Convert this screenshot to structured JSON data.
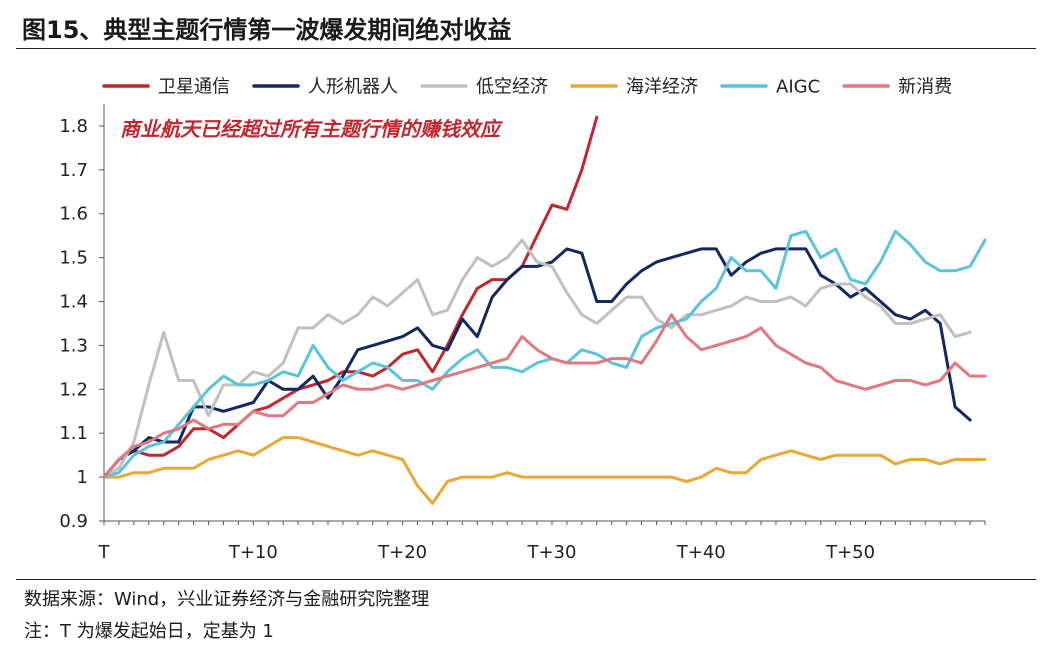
{
  "figure": {
    "title": "图15、典型主题行情第一波爆发期间绝对收益",
    "source": "数据来源：Wind，兴业证券经济与金融研究院整理",
    "footnote": "注：T 为爆发起始日，定基为 1"
  },
  "chart_data": {
    "type": "line",
    "title": "图15、典型主题行情第一波爆发期间绝对收益",
    "xlabel": "",
    "ylabel": "",
    "x": [
      0,
      1,
      2,
      3,
      4,
      5,
      6,
      7,
      8,
      9,
      10,
      11,
      12,
      13,
      14,
      15,
      16,
      17,
      18,
      19,
      20,
      21,
      22,
      23,
      24,
      25,
      26,
      27,
      28,
      29,
      30,
      31,
      32,
      33,
      34,
      35,
      36,
      37,
      38,
      39,
      40,
      41,
      42,
      43,
      44,
      45,
      46,
      47,
      48,
      49,
      50,
      51,
      52,
      53,
      54,
      55,
      56,
      57,
      58,
      59
    ],
    "xticks": [
      0,
      10,
      20,
      30,
      40,
      50
    ],
    "xtick_labels": [
      "T",
      "T+10",
      "T+20",
      "T+30",
      "T+40",
      "T+50"
    ],
    "xlim": [
      0,
      59
    ],
    "ylim": [
      0.9,
      1.85
    ],
    "yticks": [
      0.9,
      1.0,
      1.1,
      1.2,
      1.3,
      1.4,
      1.5,
      1.6,
      1.7,
      1.8
    ],
    "ytick_labels": [
      "0.9",
      "1",
      "1.1",
      "1.2",
      "1.3",
      "1.4",
      "1.5",
      "1.6",
      "1.7",
      "1.8"
    ],
    "grid": false,
    "legend_position": "top",
    "annotations": [
      {
        "text": "商业航天已经超过所有主题行情的赚钱效应",
        "color": "#c0282f"
      }
    ],
    "series": [
      {
        "name": "卫星通信",
        "color": "#c0282f",
        "values": [
          1.0,
          1.04,
          1.06,
          1.05,
          1.05,
          1.07,
          1.11,
          1.11,
          1.09,
          1.12,
          1.15,
          1.16,
          1.18,
          1.2,
          1.21,
          1.22,
          1.24,
          1.24,
          1.23,
          1.25,
          1.28,
          1.29,
          1.24,
          1.3,
          1.37,
          1.43,
          1.45,
          1.45,
          1.48,
          1.55,
          1.62,
          1.61,
          1.7,
          1.82,
          null,
          null,
          null,
          null,
          null,
          null,
          null,
          null,
          null,
          null,
          null,
          null,
          null,
          null,
          null,
          null,
          null,
          null,
          null,
          null,
          null,
          null,
          null,
          null,
          null,
          null
        ]
      },
      {
        "name": "人形机器人",
        "color": "#14285f",
        "values": [
          1.0,
          1.04,
          1.06,
          1.09,
          1.08,
          1.08,
          1.16,
          1.16,
          1.15,
          1.16,
          1.17,
          1.22,
          1.2,
          1.2,
          1.23,
          1.18,
          1.23,
          1.29,
          1.3,
          1.31,
          1.32,
          1.34,
          1.3,
          1.29,
          1.36,
          1.32,
          1.41,
          1.45,
          1.48,
          1.48,
          1.49,
          1.52,
          1.51,
          1.4,
          1.4,
          1.44,
          1.47,
          1.49,
          1.5,
          1.51,
          1.52,
          1.52,
          1.46,
          1.49,
          1.51,
          1.52,
          1.52,
          1.52,
          1.46,
          1.44,
          1.41,
          1.43,
          1.4,
          1.37,
          1.36,
          1.38,
          1.35,
          1.16,
          1.13,
          null
        ]
      },
      {
        "name": "低空经济",
        "color": "#c0c0c0",
        "values": [
          1.0,
          1.02,
          1.08,
          1.21,
          1.33,
          1.22,
          1.22,
          1.14,
          1.21,
          1.21,
          1.24,
          1.23,
          1.26,
          1.34,
          1.34,
          1.37,
          1.35,
          1.37,
          1.41,
          1.39,
          1.42,
          1.45,
          1.37,
          1.38,
          1.45,
          1.5,
          1.48,
          1.5,
          1.54,
          1.49,
          1.48,
          1.42,
          1.37,
          1.35,
          1.38,
          1.41,
          1.41,
          1.36,
          1.34,
          1.37,
          1.37,
          1.38,
          1.39,
          1.41,
          1.4,
          1.4,
          1.41,
          1.39,
          1.43,
          1.44,
          1.44,
          1.41,
          1.39,
          1.35,
          1.35,
          1.36,
          1.37,
          1.32,
          1.33,
          null
        ]
      },
      {
        "name": "海洋经济",
        "color": "#e8a838",
        "values": [
          1.0,
          1.0,
          1.01,
          1.01,
          1.02,
          1.02,
          1.02,
          1.04,
          1.05,
          1.06,
          1.05,
          1.07,
          1.09,
          1.09,
          1.08,
          1.07,
          1.06,
          1.05,
          1.06,
          1.05,
          1.04,
          0.98,
          0.94,
          0.99,
          1.0,
          1.0,
          1.0,
          1.01,
          1.0,
          1.0,
          1.0,
          1.0,
          1.0,
          1.0,
          1.0,
          1.0,
          1.0,
          1.0,
          1.0,
          0.99,
          1.0,
          1.02,
          1.01,
          1.01,
          1.04,
          1.05,
          1.06,
          1.05,
          1.04,
          1.05,
          1.05,
          1.05,
          1.05,
          1.03,
          1.04,
          1.04,
          1.03,
          1.04,
          1.04,
          1.04
        ]
      },
      {
        "name": "AIGC",
        "color": "#5bc4d8",
        "values": [
          1.0,
          1.01,
          1.05,
          1.07,
          1.08,
          1.12,
          1.16,
          1.2,
          1.23,
          1.21,
          1.21,
          1.22,
          1.24,
          1.23,
          1.3,
          1.25,
          1.22,
          1.24,
          1.26,
          1.25,
          1.22,
          1.22,
          1.2,
          1.24,
          1.27,
          1.29,
          1.25,
          1.25,
          1.24,
          1.26,
          1.27,
          1.26,
          1.29,
          1.28,
          1.26,
          1.25,
          1.32,
          1.34,
          1.35,
          1.36,
          1.4,
          1.43,
          1.5,
          1.47,
          1.47,
          1.43,
          1.55,
          1.56,
          1.5,
          1.52,
          1.45,
          1.44,
          1.49,
          1.56,
          1.53,
          1.49,
          1.47,
          1.47,
          1.48,
          1.54
        ]
      },
      {
        "name": "新消费",
        "color": "#e07880",
        "values": [
          1.0,
          1.04,
          1.07,
          1.08,
          1.1,
          1.11,
          1.13,
          1.11,
          1.12,
          1.12,
          1.15,
          1.14,
          1.14,
          1.17,
          1.17,
          1.19,
          1.21,
          1.2,
          1.2,
          1.21,
          1.2,
          1.21,
          1.22,
          1.23,
          1.24,
          1.25,
          1.26,
          1.27,
          1.32,
          1.29,
          1.27,
          1.26,
          1.26,
          1.26,
          1.27,
          1.27,
          1.26,
          1.31,
          1.37,
          1.32,
          1.29,
          1.3,
          1.31,
          1.32,
          1.34,
          1.3,
          1.28,
          1.26,
          1.25,
          1.22,
          1.21,
          1.2,
          1.21,
          1.22,
          1.22,
          1.21,
          1.22,
          1.26,
          1.23,
          1.23
        ]
      }
    ]
  }
}
